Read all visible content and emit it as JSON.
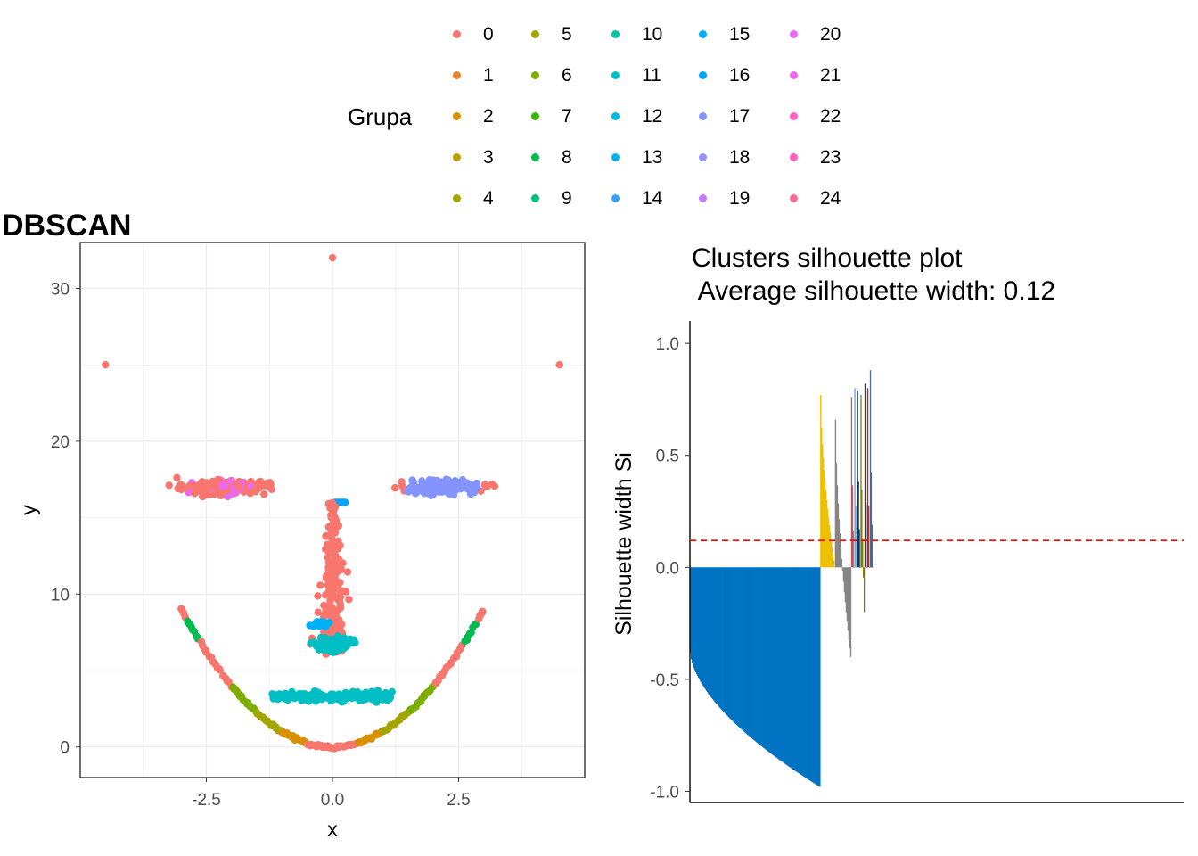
{
  "legend": {
    "title": "Grupa",
    "items": [
      {
        "label": "0",
        "color": "#F8766D"
      },
      {
        "label": "1",
        "color": "#EA8331"
      },
      {
        "label": "2",
        "color": "#D89000"
      },
      {
        "label": "3",
        "color": "#C09B00"
      },
      {
        "label": "4",
        "color": "#A3A500"
      },
      {
        "label": "5",
        "color": "#A3A500"
      },
      {
        "label": "6",
        "color": "#7CAE00"
      },
      {
        "label": "7",
        "color": "#39B600"
      },
      {
        "label": "8",
        "color": "#00BB4E"
      },
      {
        "label": "9",
        "color": "#00BF7D"
      },
      {
        "label": "10",
        "color": "#00C1A3"
      },
      {
        "label": "11",
        "color": "#00BFC4"
      },
      {
        "label": "12",
        "color": "#00BAE0"
      },
      {
        "label": "13",
        "color": "#00B0F6"
      },
      {
        "label": "14",
        "color": "#35A2FF"
      },
      {
        "label": "15",
        "color": "#00B0F6"
      },
      {
        "label": "16",
        "color": "#00A5FF"
      },
      {
        "label": "17",
        "color": "#8494FF"
      },
      {
        "label": "18",
        "color": "#9590FF"
      },
      {
        "label": "19",
        "color": "#C77CFF"
      },
      {
        "label": "20",
        "color": "#E76BF3"
      },
      {
        "label": "21",
        "color": "#ED68ED"
      },
      {
        "label": "22",
        "color": "#FF61C3"
      },
      {
        "label": "23",
        "color": "#FF62BC"
      },
      {
        "label": "24",
        "color": "#FF6C91"
      }
    ]
  },
  "chart_data": [
    {
      "type": "scatter",
      "title": "DBSCAN",
      "xlabel": "x",
      "ylabel": "y",
      "xlim": [
        -5,
        5
      ],
      "ylim": [
        -2,
        33
      ],
      "xticks": [
        "-2.5",
        "0.0",
        "2.5"
      ],
      "xtick_values": [
        -2.5,
        0,
        2.5
      ],
      "yticks": [
        "0",
        "10",
        "20",
        "30"
      ],
      "ytick_values": [
        0,
        10,
        20,
        30
      ],
      "grid": true,
      "legend": "top",
      "shapes": [
        {
          "shape": "outlier",
          "points": [
            [
              0,
              32
            ],
            [
              -4.5,
              25
            ],
            [
              4.5,
              25
            ]
          ],
          "color": "#F8766D"
        },
        {
          "shape": "eye",
          "center": [
            -2.2,
            17
          ],
          "rx": 1.2,
          "ry": 0.9,
          "n": 150,
          "color": "#F8766D",
          "accent": "#ED68ED",
          "accent_share": 0.15
        },
        {
          "shape": "eye",
          "center": [
            2.2,
            17
          ],
          "rx": 1.2,
          "ry": 0.9,
          "n": 150,
          "color": "#F8766D",
          "accent": "#8494FF",
          "accent_share": 0.5
        },
        {
          "shape": "segment",
          "from": [
            0.05,
            16
          ],
          "to": [
            0.25,
            16
          ],
          "n": 8,
          "color": "#00A5FF"
        },
        {
          "shape": "nose",
          "x_center": 0,
          "y_from": 6,
          "y_to": 16,
          "n": 180,
          "color": "#F8766D"
        },
        {
          "shape": "blob",
          "center": [
            0,
            6.7
          ],
          "rx": 0.5,
          "ry": 0.7,
          "n": 120,
          "color": "#00BFC4"
        },
        {
          "shape": "blob",
          "center": [
            -0.2,
            8
          ],
          "rx": 0.3,
          "ry": 0.3,
          "n": 25,
          "color": "#00B0F6"
        },
        {
          "shape": "mouth",
          "x_from": -1.2,
          "x_to": 1.2,
          "y": 3.3,
          "jitter": 0.45,
          "n": 200,
          "color": "#00BFC4"
        },
        {
          "shape": "parabola",
          "x_from": -3,
          "x_to": 3,
          "k": 1,
          "n": 200,
          "color": "#F8766D"
        }
      ]
    },
    {
      "type": "bar",
      "title": "Clusters silhouette plot\n Average silhouette width: 0.12",
      "ylabel": "Silhouette width Si",
      "ylim": [
        -1.05,
        1.1
      ],
      "yticks": [
        "-1.0",
        "-0.5",
        "0.0",
        "0.5",
        "1.0"
      ],
      "ytick_values": [
        -1,
        -0.5,
        0,
        0.5,
        1
      ],
      "average_line": 0.12,
      "average_line_color": "#FF0000",
      "clusters": [
        {
          "share": 0.485,
          "color": "#0073C2",
          "from": -0.38,
          "to": -0.98
        },
        {
          "share": 0.055,
          "color": "#EFC000",
          "from": 0.77,
          "to": 0.0
        },
        {
          "share": 0.06,
          "color": "#868686",
          "from": 0.66,
          "to": -0.4
        },
        {
          "share": 0.012,
          "color": "#CD534C",
          "from": 0.76,
          "to": 0.0
        },
        {
          "share": 0.01,
          "color": "#7AA6DC",
          "from": 0.8,
          "to": 0.0
        },
        {
          "share": 0.013,
          "color": "#003C67",
          "from": 0.79,
          "to": 0.0
        },
        {
          "share": 0.015,
          "color": "#8F7700",
          "from": 0.77,
          "to": -0.2
        },
        {
          "share": 0.01,
          "color": "#3B3B3B",
          "from": 0.82,
          "to": 0.0
        },
        {
          "share": 0.01,
          "color": "#A73030",
          "from": 0.8,
          "to": 0.0
        },
        {
          "share": 0.012,
          "color": "#4A6990",
          "from": 0.88,
          "to": 0.0
        }
      ],
      "plot_width_share": 1.0
    }
  ]
}
